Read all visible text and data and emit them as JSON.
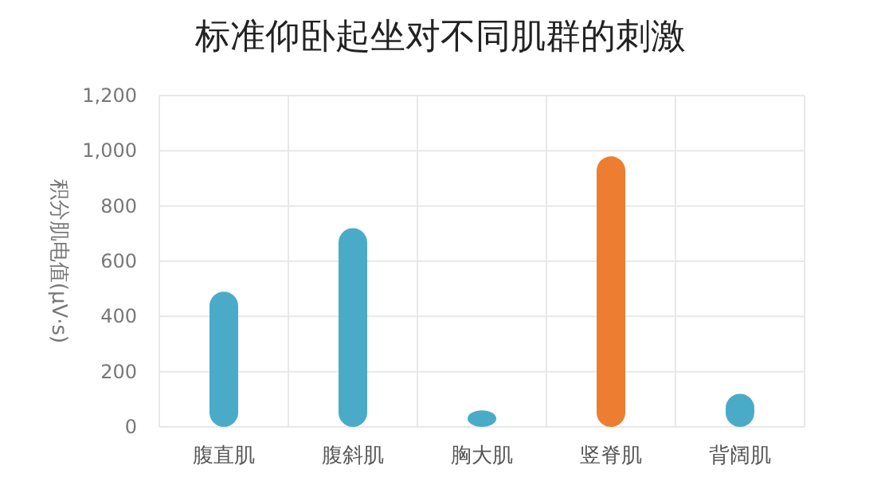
{
  "chart_data": {
    "type": "bar",
    "title": "标准仰卧起坐对不同肌群的刺激",
    "ylabel": "积分肌电值(μV·s)",
    "categories": [
      "腹直肌",
      "腹斜肌",
      "胸大肌",
      "竖脊肌",
      "背阔肌"
    ],
    "values": [
      490,
      720,
      60,
      980,
      120
    ],
    "colors": [
      "#4aabc8",
      "#4aabc8",
      "#4aabc8",
      "#ed7d31",
      "#4aabc8"
    ],
    "ylim": [
      0,
      1200
    ],
    "yticks": [
      {
        "value": 0,
        "label": "0"
      },
      {
        "value": 200,
        "label": "200"
      },
      {
        "value": 400,
        "label": "400"
      },
      {
        "value": 600,
        "label": "600"
      },
      {
        "value": 800,
        "label": "800"
      },
      {
        "value": 1000,
        "label": "1,000"
      },
      {
        "value": 1200,
        "label": "1,200"
      }
    ],
    "grid": true
  }
}
